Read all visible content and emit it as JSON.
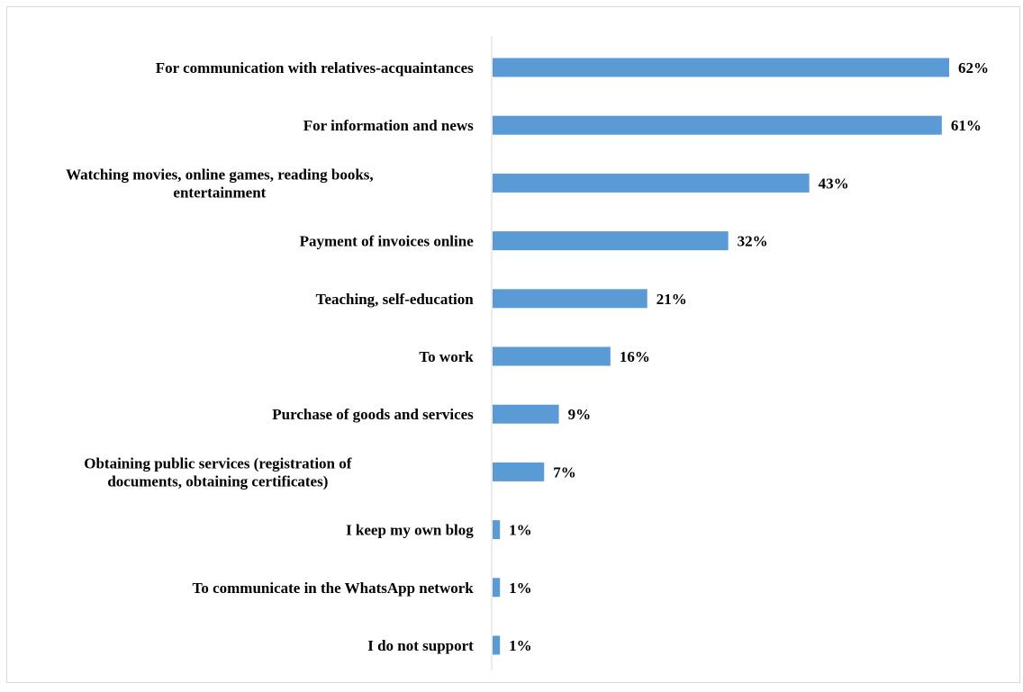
{
  "chart_data": {
    "type": "bar",
    "orientation": "horizontal",
    "categories": [
      [
        "For communication with relatives-acquaintances"
      ],
      [
        "For information and news"
      ],
      [
        "Watching movies, online games, reading books,",
        "entertainment"
      ],
      [
        "Payment of invoices online"
      ],
      [
        "Teaching, self-education"
      ],
      [
        "To work"
      ],
      [
        "Purchase of goods and services"
      ],
      [
        "Obtaining public services (registration of",
        "documents, obtaining certificates)"
      ],
      [
        "I keep my own blog"
      ],
      [
        "To communicate in the WhatsApp network"
      ],
      [
        "I do not support"
      ]
    ],
    "values": [
      62,
      61,
      43,
      32,
      21,
      16,
      9,
      7,
      1,
      1,
      1
    ],
    "value_labels": [
      "62%",
      "61%",
      "43%",
      "32%",
      "21%",
      "16%",
      "9%",
      "7%",
      "1%",
      "1%",
      "1%"
    ],
    "unit": "%",
    "xlim": [
      0,
      62
    ],
    "grid": false,
    "legend": "none",
    "bar_color": "#5b9bd5",
    "axis_color": "#d9d9d9"
  }
}
